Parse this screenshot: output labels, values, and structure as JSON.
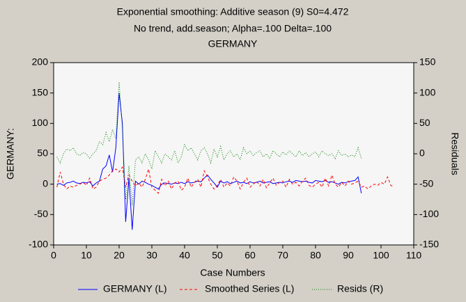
{
  "chart_data": {
    "type": "line",
    "title": "Exponential smoothing: Additive season (9) S0=4.472",
    "subtitle": "No trend, add.season; Alpha=.100  Delta=.100",
    "subtitle2": "GERMANY",
    "xlabel": "Case Numbers",
    "ylabel": "GERMANY:",
    "y2label": "Residuals",
    "xlim": [
      0,
      110
    ],
    "xticks": [
      0,
      10,
      20,
      30,
      40,
      50,
      60,
      70,
      80,
      90,
      100,
      110
    ],
    "ylim": [
      -100,
      200
    ],
    "yticks": [
      -100,
      -50,
      0,
      50,
      100,
      150,
      200
    ],
    "y2lim": [
      -150,
      150
    ],
    "y2ticks": [
      -150,
      -100,
      -50,
      0,
      50,
      100,
      150
    ],
    "grid": false,
    "legend": "bottom",
    "series": [
      {
        "name": "GERMANY (L)",
        "color": "#0000ff",
        "line_style": "solid",
        "x": [
          1,
          2,
          3,
          4,
          5,
          6,
          7,
          8,
          9,
          10,
          11,
          12,
          13,
          14,
          15,
          16,
          17,
          18,
          19,
          20,
          21,
          22,
          23,
          24,
          25,
          26,
          27,
          28,
          29,
          30,
          31,
          32,
          33,
          34,
          35,
          36,
          37,
          38,
          39,
          40,
          41,
          42,
          43,
          44,
          45,
          46,
          47,
          48,
          49,
          50,
          51,
          52,
          53,
          54,
          55,
          56,
          57,
          58,
          59,
          60,
          61,
          62,
          63,
          64,
          65,
          66,
          67,
          68,
          69,
          70,
          71,
          72,
          73,
          74,
          75,
          76,
          77,
          78,
          79,
          80,
          81,
          82,
          83,
          84,
          85,
          86,
          87,
          88,
          89,
          90,
          91,
          92,
          93,
          94
        ],
        "values": [
          0,
          1,
          -2,
          2,
          3,
          5,
          2,
          1,
          3,
          2,
          4,
          -3,
          2,
          5,
          25,
          30,
          48,
          20,
          60,
          150,
          100,
          -62,
          10,
          -75,
          5,
          0,
          5,
          3,
          0,
          -2,
          -5,
          -8,
          0,
          2,
          1,
          0,
          2,
          1,
          3,
          1,
          4,
          2,
          3,
          5,
          4,
          10,
          15,
          8,
          2,
          -5,
          5,
          2,
          4,
          1,
          3,
          5,
          2,
          3,
          1,
          4,
          2,
          3,
          5,
          2,
          3,
          4,
          1,
          2,
          3,
          2,
          4,
          5,
          3,
          6,
          5,
          4,
          5,
          3,
          2,
          6,
          5,
          4,
          6,
          3,
          4,
          2,
          0,
          3,
          2,
          4,
          5,
          6,
          12,
          -15
        ]
      },
      {
        "name": "Smoothed Series (L)",
        "color": "#ff0000",
        "line_style": "dashed",
        "x": [
          1,
          2,
          3,
          4,
          5,
          6,
          7,
          8,
          9,
          10,
          11,
          12,
          13,
          14,
          15,
          16,
          17,
          18,
          19,
          20,
          21,
          22,
          23,
          24,
          25,
          26,
          27,
          28,
          29,
          30,
          31,
          32,
          33,
          34,
          35,
          36,
          37,
          38,
          39,
          40,
          41,
          42,
          43,
          44,
          45,
          46,
          47,
          48,
          49,
          50,
          51,
          52,
          53,
          54,
          55,
          56,
          57,
          58,
          59,
          60,
          61,
          62,
          63,
          64,
          65,
          66,
          67,
          68,
          69,
          70,
          71,
          72,
          73,
          74,
          75,
          76,
          77,
          78,
          79,
          80,
          81,
          82,
          83,
          84,
          85,
          86,
          87,
          88,
          89,
          90,
          91,
          92,
          93,
          94,
          95,
          96,
          97,
          98,
          99,
          100,
          101,
          102,
          103,
          104
        ],
        "values": [
          -5,
          20,
          0,
          -8,
          -3,
          -5,
          -2,
          0,
          3,
          -2,
          10,
          -8,
          -5,
          5,
          8,
          10,
          15,
          22,
          25,
          20,
          28,
          -5,
          15,
          5,
          -3,
          2,
          -5,
          8,
          25,
          -5,
          -10,
          -15,
          8,
          -3,
          5,
          -8,
          2,
          5,
          -10,
          -5,
          10,
          -5,
          3,
          8,
          -5,
          22,
          12,
          0,
          -8,
          -2,
          8,
          -5,
          2,
          -3,
          12,
          5,
          -8,
          3,
          10,
          -5,
          0,
          5,
          -3,
          8,
          -6,
          2,
          10,
          -2,
          3,
          5,
          -5,
          8,
          0,
          3,
          -3,
          5,
          10,
          -2,
          -5,
          0,
          3,
          -5,
          10,
          -3,
          15,
          0,
          -5,
          3,
          -3,
          5,
          0,
          2,
          5,
          -5,
          -3,
          -8,
          -3,
          0,
          -2,
          3,
          0,
          12,
          -2,
          -5
        ]
      },
      {
        "name": "Resids (R)",
        "color": "#008000",
        "line_style": "dotted",
        "axis": "y2",
        "x": [
          1,
          2,
          3,
          4,
          5,
          6,
          7,
          8,
          9,
          10,
          11,
          12,
          13,
          14,
          15,
          16,
          17,
          18,
          19,
          20,
          21,
          22,
          23,
          24,
          25,
          26,
          27,
          28,
          29,
          30,
          31,
          32,
          33,
          34,
          35,
          36,
          37,
          38,
          39,
          40,
          41,
          42,
          43,
          44,
          45,
          46,
          47,
          48,
          49,
          50,
          51,
          52,
          53,
          54,
          55,
          56,
          57,
          58,
          59,
          60,
          61,
          62,
          63,
          64,
          65,
          66,
          67,
          68,
          69,
          70,
          71,
          72,
          73,
          74,
          75,
          76,
          77,
          78,
          79,
          80,
          81,
          82,
          83,
          84,
          85,
          86,
          87,
          88,
          89,
          90,
          91,
          92,
          93,
          94
        ],
        "values": [
          -5,
          -15,
          0,
          8,
          5,
          10,
          0,
          -3,
          2,
          0,
          -8,
          0,
          5,
          20,
          15,
          35,
          20,
          40,
          25,
          118,
          40,
          -75,
          -20,
          -85,
          -10,
          -5,
          -15,
          0,
          -10,
          -25,
          5,
          -5,
          -15,
          0,
          -5,
          -10,
          5,
          -15,
          -5,
          15,
          5,
          10,
          0,
          -10,
          5,
          10,
          0,
          -15,
          8,
          -5,
          12,
          -10,
          0,
          5,
          -5,
          0,
          -10,
          10,
          0,
          5,
          -3,
          2,
          5,
          -5,
          0,
          -8,
          5,
          0,
          -5,
          3,
          -2,
          5,
          0,
          -5,
          5,
          -3,
          2,
          -5,
          0,
          3,
          -5,
          5,
          0,
          -3,
          0,
          -8,
          5,
          -3,
          0,
          -5,
          -2,
          -5,
          10,
          -8
        ]
      }
    ]
  }
}
